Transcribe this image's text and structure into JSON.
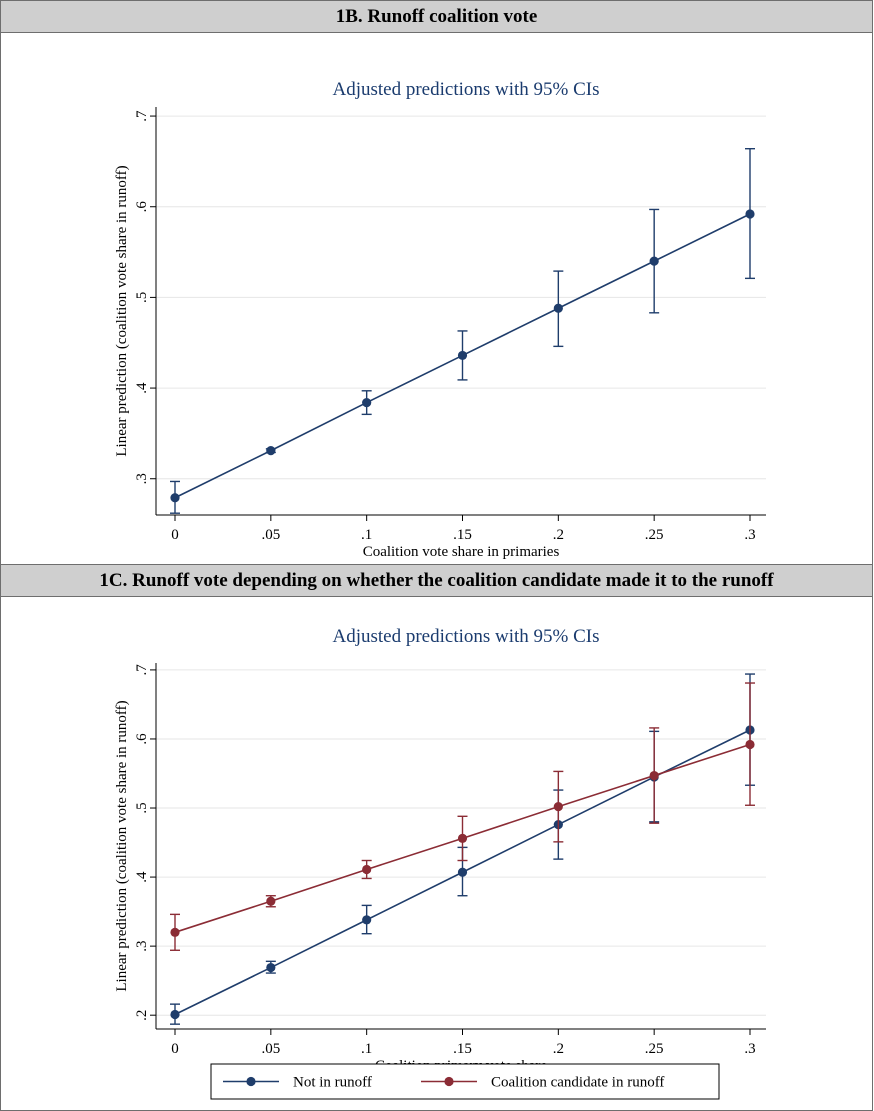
{
  "panels": [
    {
      "header": "1B. Runoff coalition vote",
      "chart_data": {
        "type": "line",
        "title": "Adjusted predictions with 95% CIs",
        "xlabel": "Coalition vote share in primaries",
        "ylabel": "Linear prediction (coalition vote share in runoff)",
        "x": [
          0,
          0.05,
          0.1,
          0.15,
          0.2,
          0.25,
          0.3
        ],
        "x_tick_labels": [
          "0",
          ".05",
          ".1",
          ".15",
          ".2",
          ".25",
          ".3"
        ],
        "y_ticks": [
          0.3,
          0.4,
          0.5,
          0.6,
          0.7
        ],
        "y_tick_labels": [
          ".3",
          ".4",
          ".5",
          ".6",
          ".7"
        ],
        "xlim": [
          0,
          0.3
        ],
        "ylim": [
          0.26,
          0.71
        ],
        "grid": true,
        "series": [
          {
            "name": "",
            "color": "#1f3d6b",
            "values": [
              0.279,
              0.331,
              0.384,
              0.436,
              0.488,
              0.54,
              0.592
            ],
            "ci_low": [
              0.262,
              0.329,
              0.371,
              0.409,
              0.446,
              0.483,
              0.521
            ],
            "ci_high": [
              0.297,
              0.333,
              0.397,
              0.463,
              0.529,
              0.597,
              0.664
            ]
          }
        ]
      }
    },
    {
      "header": "1C. Runoff vote depending on whether the coalition candidate made it to the runoff",
      "chart_data": {
        "type": "line",
        "title": "Adjusted predictions with 95% CIs",
        "xlabel": "Coalition primary vote share",
        "ylabel": "Linear prediction (coalition vote share in runoff)",
        "x": [
          0,
          0.05,
          0.1,
          0.15,
          0.2,
          0.25,
          0.3
        ],
        "x_tick_labels": [
          "0",
          ".05",
          ".1",
          ".15",
          ".2",
          ".25",
          ".3"
        ],
        "y_ticks": [
          0.2,
          0.3,
          0.4,
          0.5,
          0.6,
          0.7
        ],
        "y_tick_labels": [
          ".2",
          ".3",
          ".4",
          ".5",
          ".6",
          ".7"
        ],
        "xlim": [
          0,
          0.3
        ],
        "ylim": [
          0.18,
          0.71
        ],
        "grid": true,
        "legend_position": "bottom",
        "series": [
          {
            "name": "Not in runoff",
            "color": "#1f3d6b",
            "values": [
              0.201,
              0.269,
              0.338,
              0.407,
              0.476,
              0.545,
              0.613
            ],
            "ci_low": [
              0.187,
              0.261,
              0.318,
              0.373,
              0.426,
              0.48,
              0.533
            ],
            "ci_high": [
              0.216,
              0.278,
              0.359,
              0.443,
              0.526,
              0.611,
              0.694
            ]
          },
          {
            "name": "Coalition candidate in runoff",
            "color": "#8b2c35",
            "values": [
              0.32,
              0.365,
              0.411,
              0.456,
              0.502,
              0.547,
              0.592
            ],
            "ci_low": [
              0.294,
              0.357,
              0.398,
              0.424,
              0.451,
              0.478,
              0.504
            ],
            "ci_high": [
              0.346,
              0.373,
              0.424,
              0.488,
              0.553,
              0.616,
              0.681
            ]
          }
        ]
      }
    }
  ]
}
